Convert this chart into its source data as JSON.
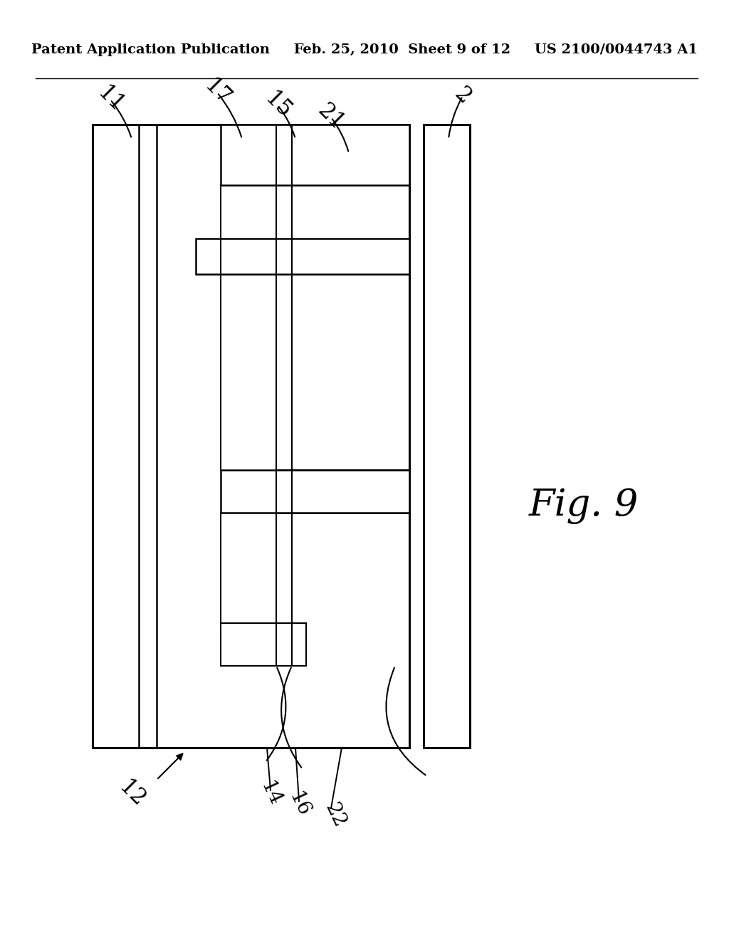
{
  "header_left": "Patent Application Publication",
  "header_mid": "Feb. 25, 2010  Sheet 9 of 12",
  "header_right": "US 2100/0044743 A1",
  "fig_label": "Fig. 9",
  "bg_color": "#ffffff",
  "lc": "#000000"
}
